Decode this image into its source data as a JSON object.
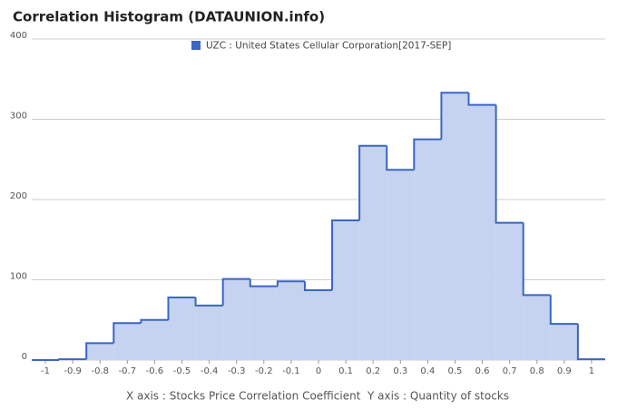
{
  "chart_data": {
    "type": "histogram",
    "title": "Correlation Histogram (DATAUNION.info)",
    "axis_label": "X axis : Stocks Price Correlation Coefficient  Y axis : Quantity of stocks",
    "series": [
      {
        "name": "UZC : United States Cellular Corporation[2017-SEP]",
        "color": "#3a66c4",
        "fill": "#c5d3f0",
        "values": [
          0,
          1,
          21,
          46,
          50,
          78,
          68,
          101,
          92,
          98,
          87,
          174,
          267,
          237,
          275,
          333,
          318,
          171,
          81,
          45,
          1
        ]
      }
    ],
    "bins": [
      -1.05,
      -0.95,
      -0.85,
      -0.75,
      -0.65,
      -0.55,
      -0.45,
      -0.35,
      -0.25,
      -0.15,
      -0.05,
      0.05,
      0.15,
      0.25,
      0.35,
      0.45,
      0.55,
      0.65,
      0.75,
      0.85,
      0.95,
      1.05
    ],
    "xlim": [
      -1.05,
      1.05
    ],
    "xticks": [
      -1,
      -0.9,
      -0.8,
      -0.7,
      -0.6,
      -0.5,
      -0.4,
      -0.3,
      -0.2,
      -0.1,
      0,
      0.1,
      0.2,
      0.3,
      0.4,
      0.5,
      0.6,
      0.7,
      0.8,
      0.9,
      1
    ],
    "ylim": [
      0,
      400
    ],
    "yticks": [
      0,
      100,
      200,
      300,
      400
    ],
    "grid": true
  }
}
